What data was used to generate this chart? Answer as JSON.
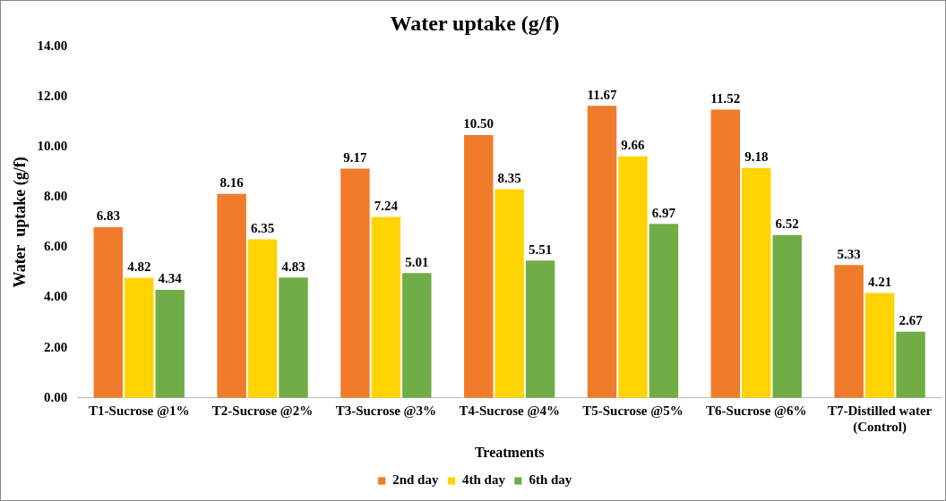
{
  "chart_data": {
    "type": "bar",
    "title": "Water uptake (g/f)",
    "xlabel": "Treatments",
    "ylabel": "Water  uptake (g/f)",
    "categories": [
      "T1-Sucrose @1%",
      "T2-Sucrose @2%",
      "T3-Sucrose @3%",
      "T4-Sucrose @4%",
      "T5-Sucrose @5%",
      "T6-Sucrose @6%",
      "T7-Distilled water (Control)"
    ],
    "series": [
      {
        "name": "2nd day",
        "color": "#f07b2a",
        "values": [
          6.83,
          8.16,
          9.17,
          10.5,
          11.67,
          11.52,
          5.33
        ],
        "value_labels": [
          "6.83",
          "8.16",
          "9.17",
          "10.50",
          "11.67",
          "11.52",
          "5.33"
        ]
      },
      {
        "name": "4th day",
        "color": "#ffd400",
        "values": [
          4.82,
          6.35,
          7.24,
          8.35,
          9.66,
          9.18,
          4.21
        ],
        "value_labels": [
          "4.82",
          "6.35",
          "7.24",
          "8.35",
          "9.66",
          "9.18",
          "4.21"
        ]
      },
      {
        "name": "6th day",
        "color": "#70ad47",
        "values": [
          4.34,
          4.83,
          5.01,
          5.51,
          6.97,
          6.52,
          2.67
        ],
        "value_labels": [
          "4.34",
          "4.83",
          "5.01",
          "5.51",
          "6.97",
          "6.52",
          "2.67"
        ]
      }
    ],
    "ylim": [
      0,
      14
    ],
    "yticks": [
      {
        "value": 0,
        "label": "0.00"
      },
      {
        "value": 2,
        "label": "2.00"
      },
      {
        "value": 4,
        "label": "4.00"
      },
      {
        "value": 6,
        "label": "6.00"
      },
      {
        "value": 8,
        "label": "8.00"
      },
      {
        "value": 10,
        "label": "10.00"
      },
      {
        "value": 12,
        "label": "12.00"
      },
      {
        "value": 14,
        "label": "14.00"
      }
    ],
    "grid": false,
    "legend": "bottom"
  }
}
